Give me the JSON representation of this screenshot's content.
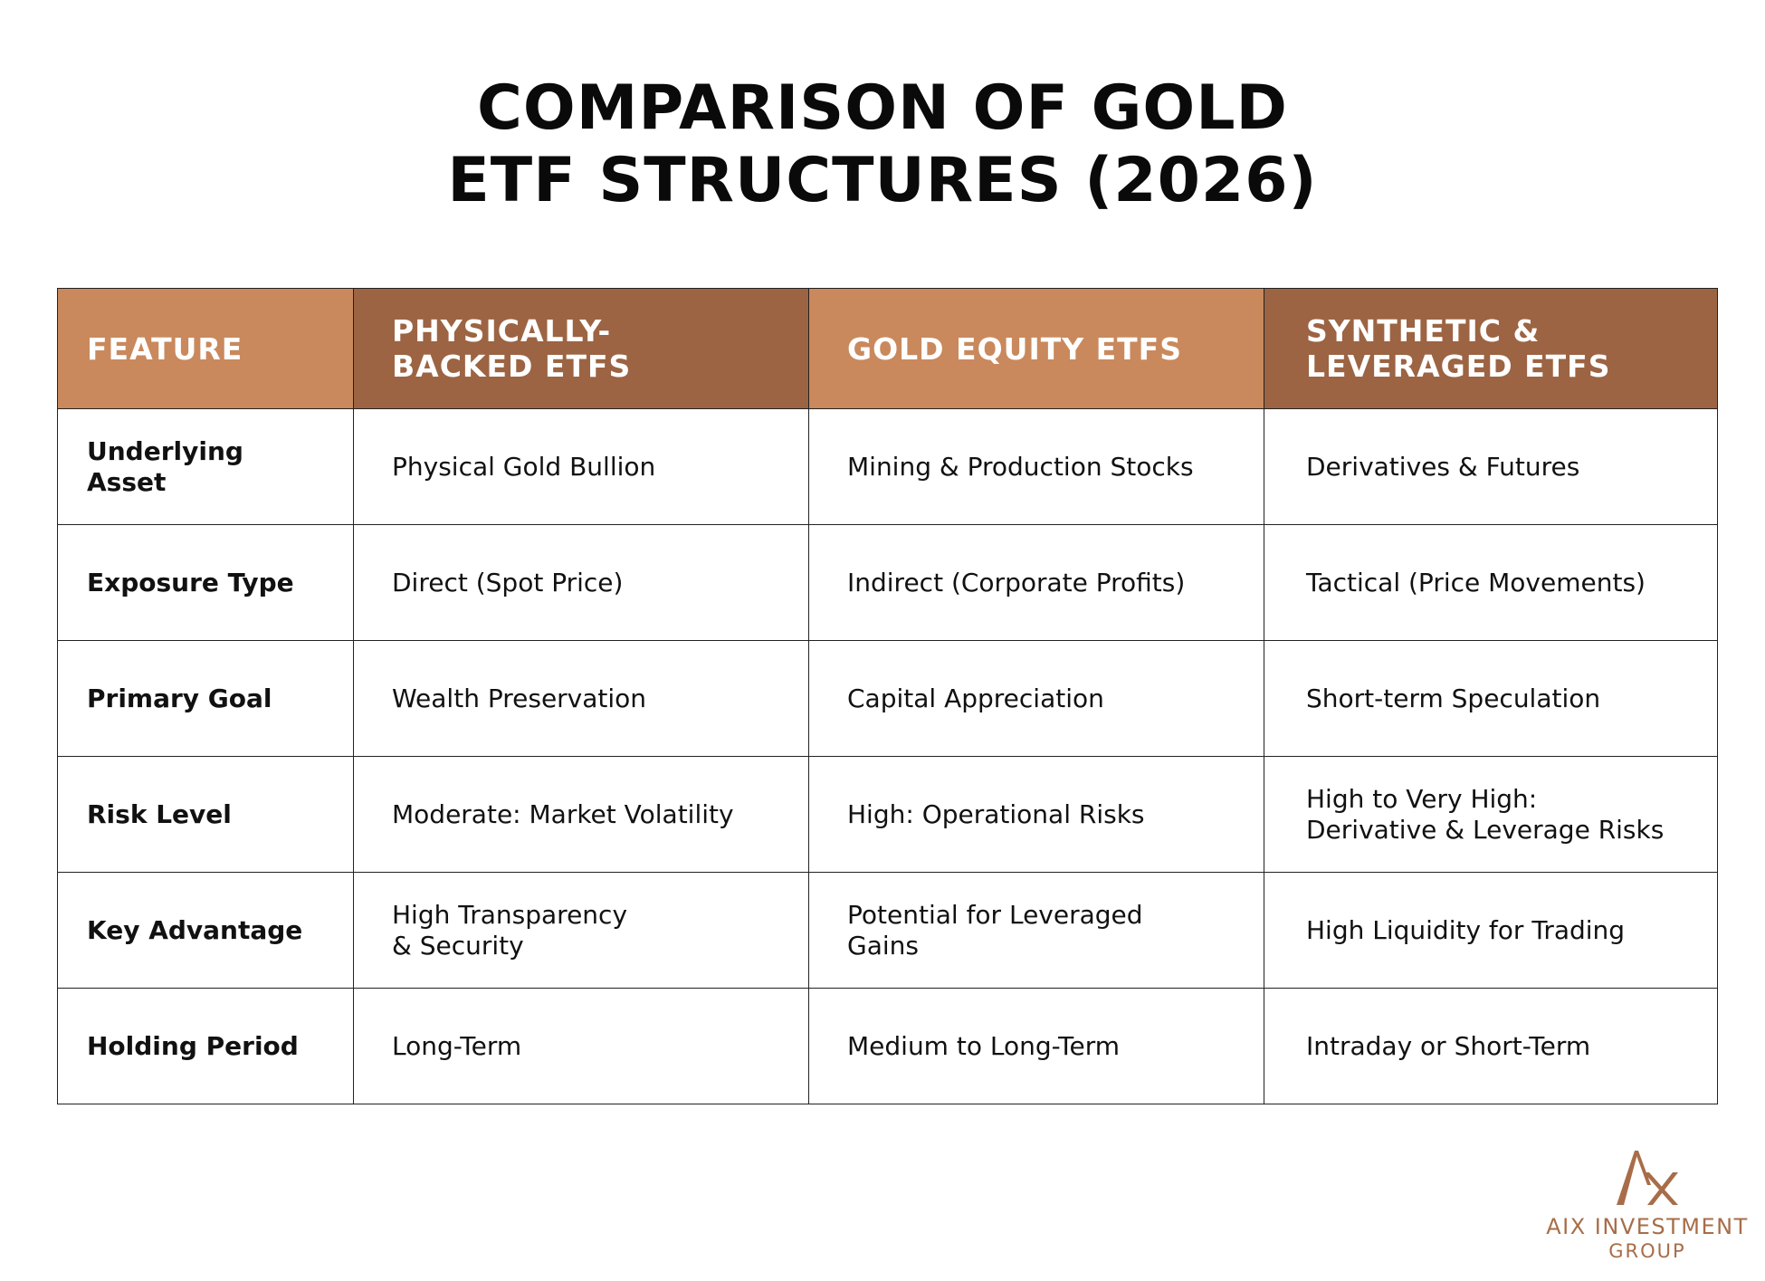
{
  "title": {
    "line1": "COMPARISON OF GOLD",
    "line2": "ETF STRUCTURES (2026)"
  },
  "table": {
    "headers": [
      {
        "line1": "FEATURE",
        "line2": ""
      },
      {
        "line1": "PHYSICALLY-",
        "line2": "BACKED ETFS"
      },
      {
        "line1": "GOLD EQUITY ETFS",
        "line2": ""
      },
      {
        "line1": "SYNTHETIC &",
        "line2": "LEVERAGED ETFS"
      }
    ],
    "rows": [
      {
        "feature": "Underlying Asset",
        "cells": [
          {
            "line1": "Physical Gold Bullion",
            "line2": ""
          },
          {
            "line1": "Mining & Production Stocks",
            "line2": ""
          },
          {
            "line1": "Derivatives & Futures",
            "line2": ""
          }
        ]
      },
      {
        "feature": "Exposure Type",
        "cells": [
          {
            "line1": "Direct (Spot Price)",
            "line2": ""
          },
          {
            "line1": "Indirect (Corporate Profits)",
            "line2": ""
          },
          {
            "line1": "Tactical (Price Movements)",
            "line2": ""
          }
        ]
      },
      {
        "feature": "Primary Goal",
        "cells": [
          {
            "line1": "Wealth Preservation",
            "line2": ""
          },
          {
            "line1": "Capital Appreciation",
            "line2": ""
          },
          {
            "line1": "Short-term Speculation",
            "line2": ""
          }
        ]
      },
      {
        "feature": "Risk Level",
        "cells": [
          {
            "line1": "Moderate: Market Volatility",
            "line2": ""
          },
          {
            "line1": "High: Operational Risks",
            "line2": ""
          },
          {
            "line1": "High to Very High:",
            "line2": "Derivative & Leverage Risks"
          }
        ]
      },
      {
        "feature": "Key Advantage",
        "cells": [
          {
            "line1": "High Transparency",
            "line2": "& Security"
          },
          {
            "line1": "Potential for Leveraged",
            "line2": "Gains"
          },
          {
            "line1": "High Liquidity for Trading",
            "line2": ""
          }
        ]
      },
      {
        "feature": "Holding Period",
        "cells": [
          {
            "line1": "Long-Term",
            "line2": ""
          },
          {
            "line1": "Medium to Long-Term",
            "line2": ""
          },
          {
            "line1": "Intraday or Short-Term",
            "line2": ""
          }
        ]
      }
    ]
  },
  "colors": {
    "header_light": "#c9895d",
    "header_dark": "#9c6443",
    "logo": "#a86d48"
  },
  "logo": {
    "icon": "ax-monogram-icon",
    "name": "AIX INVESTMENT",
    "sub": "GROUP"
  }
}
